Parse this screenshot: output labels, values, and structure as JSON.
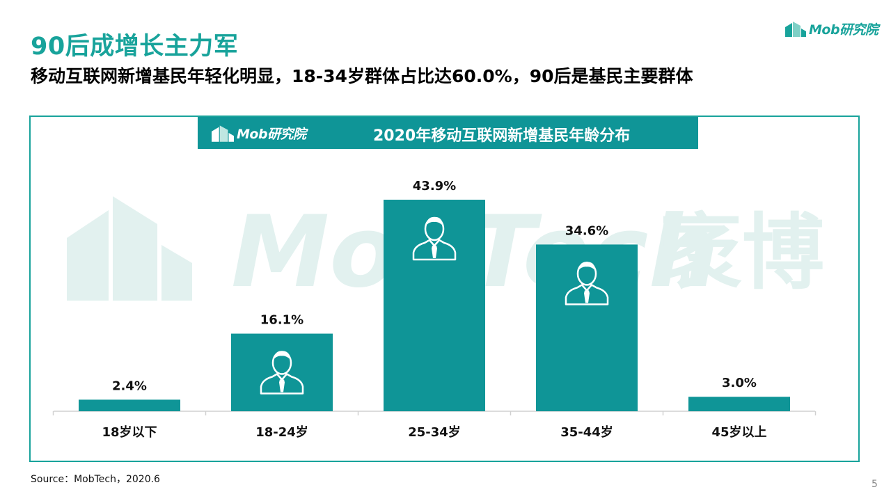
{
  "header": {
    "title": "90后成增长主力军",
    "subtitle": "移动互联网新增基民年轻化明显，18-34岁群体占比达60.0%，90后是基民主要群体"
  },
  "brand": {
    "logo_text": "Mob研究院",
    "watermark_text": "MobTech",
    "watermark_cn": "袤博"
  },
  "colors": {
    "accent": "#18a39b",
    "bar": "#0f9597",
    "banner": "#0f9597"
  },
  "icons": [
    "building-logo-icon",
    "person-icon"
  ],
  "chart_data": {
    "type": "bar",
    "title": "2020年移动互联网新增基民年龄分布",
    "categories": [
      "18岁以下",
      "18-24岁",
      "25-34岁",
      "35-44岁",
      "45岁以上"
    ],
    "values": [
      2.4,
      16.1,
      43.9,
      34.6,
      3.0
    ],
    "data_labels": [
      "2.4%",
      "16.1%",
      "43.9%",
      "34.6%",
      "3.0%"
    ],
    "unit": "%",
    "ylim": [
      0,
      45
    ],
    "grid": false,
    "legend": "none",
    "bar_icons": [
      false,
      true,
      true,
      true,
      false
    ]
  },
  "footer": {
    "source": "Source：MobTech，2020.6",
    "page_number": "5"
  }
}
